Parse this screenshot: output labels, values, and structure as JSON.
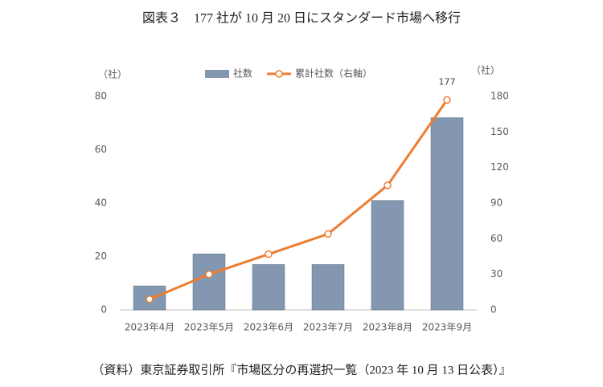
{
  "chart_data": {
    "type": "bar-line",
    "title": "図表３　177 社が 10 月 20 日にスタンダード市場へ移行",
    "source": "（資料）東京証券取引所『市場区分の再選択一覧（2023 年 10 月 13 日公表）』",
    "ylabel": "（社）",
    "y2label": "（社）",
    "categories": [
      "2023年4月",
      "2023年5月",
      "2023年6月",
      "2023年7月",
      "2023年8月",
      "2023年9月"
    ],
    "series": [
      {
        "name": "社数",
        "type": "bar",
        "color": "#8497b0",
        "values": [
          9,
          21,
          17,
          17,
          41,
          72
        ]
      },
      {
        "name": "累計社数（右軸）",
        "type": "line",
        "axis": "y2",
        "color": "#ed7d31",
        "values": [
          9,
          30,
          47,
          64,
          105,
          177
        ],
        "data_labels": "last"
      }
    ],
    "ylim": [
      0,
      80
    ],
    "yticks": [
      0,
      20,
      40,
      60,
      80
    ],
    "y2lim": [
      0,
      180
    ],
    "y2ticks": [
      0,
      30,
      60,
      90,
      120,
      150,
      180
    ],
    "legend": "top",
    "grid": false
  }
}
